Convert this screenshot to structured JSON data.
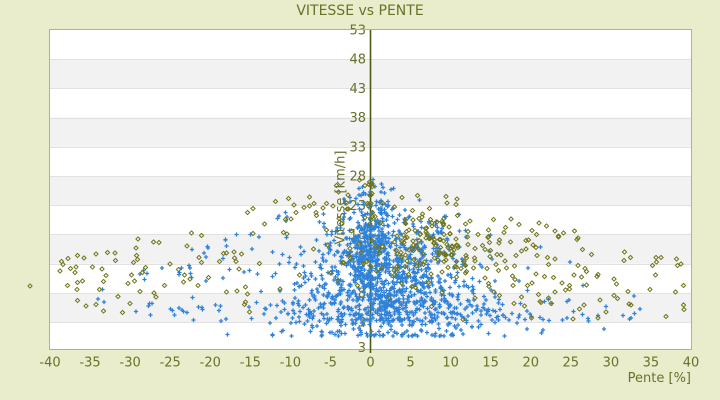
{
  "chart_data": {
    "type": "scatter",
    "title": "VITESSE vs PENTE",
    "xlabel": "Pente [%]",
    "ylabel": "Vitesse [km/h]",
    "xlim": [
      -40,
      40
    ],
    "ylim": [
      -1.6,
      53
    ],
    "x_ticks": [
      -40,
      -35,
      -30,
      -25,
      -20,
      -15,
      -10,
      -5,
      0,
      5,
      10,
      15,
      20,
      25,
      30,
      35,
      40
    ],
    "y_ticks": [
      53,
      48,
      43,
      38,
      33,
      28,
      23,
      18,
      13,
      8,
      3
    ],
    "y_axis_edge_label": "3",
    "grid": "alternating-horizontal-bands",
    "legend": "none",
    "y_axis_position": "center-zeroaxis",
    "colors": {
      "background": "#e9edcb",
      "band_gray": "#f2f2f2",
      "gridline": "#e2e2e2",
      "plot_border": "#adadad",
      "axis_line": "#4b5a12",
      "text": "#68722a",
      "series_blue": "#2f82d9",
      "series_olive": "#6f7419"
    },
    "series": [
      {
        "name": "vitesse-blue-plus",
        "marker": "plus",
        "color": "#2f82d9",
        "seed": 1337,
        "envelope": {
          "y0": 27.8,
          "slope": 0.55,
          "ymin": 0.6,
          "xmin": -38,
          "xmax": 38
        },
        "clusters": [
          {
            "n": 540,
            "x": {
              "dist": "normal",
              "mu": 2.5,
              "sigma": 4.5
            },
            "y": {
              "dist": "normal",
              "mu": 12,
              "sigma": 4.5
            }
          },
          {
            "n": 270,
            "x": {
              "dist": "normal",
              "mu": 0.2,
              "sigma": 1.4
            },
            "y": {
              "dist": "normal",
              "mu": 16,
              "sigma": 5.5
            }
          },
          {
            "n": 450,
            "x": {
              "dist": "normal",
              "mu": 3,
              "sigma": 8
            },
            "y": {
              "dist": "normal",
              "mu": 4.8,
              "sigma": 2.6
            }
          },
          {
            "n": 190,
            "x": {
              "dist": "normal",
              "mu": -3,
              "sigma": 13
            },
            "y": {
              "dist": "normal",
              "mu": 12,
              "sigma": 5.5
            }
          },
          {
            "n": 70,
            "x": {
              "dist": "uniform",
              "min": -28,
              "max": 34
            },
            "y": {
              "dist": "uniform",
              "min": 3.2,
              "max": 6.2
            }
          }
        ],
        "outliers": []
      },
      {
        "name": "secondary-olive-diamond",
        "marker": "diamond",
        "color": "#6f7419",
        "seed": 4242,
        "envelope": {
          "y0": 28.5,
          "slope": 0.38,
          "ymin": 3.4,
          "xmin": -39.5,
          "xmax": 39.5
        },
        "clusters": [
          {
            "n": 135,
            "x": {
              "dist": "normal",
              "mu": 8.5,
              "sigma": 5.5
            },
            "y": {
              "dist": "normal",
              "mu": 16.5,
              "sigma": 2.9
            }
          },
          {
            "n": 115,
            "x": {
              "dist": "uniform",
              "min": -39.5,
              "max": 39.5
            },
            "y": {
              "dist": "normal",
              "mu": 14.5,
              "sigma": 3.9
            }
          },
          {
            "n": 55,
            "x": {
              "dist": "normal",
              "mu": 24,
              "sigma": 8
            },
            "y": {
              "dist": "normal",
              "mu": 8,
              "sigma": 2.6
            }
          },
          {
            "n": 42,
            "x": {
              "dist": "normal",
              "mu": -2.5,
              "sigma": 7.5
            },
            "y": {
              "dist": "normal",
              "mu": 23,
              "sigma": 2.6
            }
          },
          {
            "n": 13,
            "x": {
              "dist": "normal",
              "mu": 0,
              "sigma": 0.15
            },
            "y": {
              "dist": "uniform",
              "min": 19.5,
              "max": 28.2
            }
          },
          {
            "n": 40,
            "x": {
              "dist": "uniform",
              "min": -39.5,
              "max": -14
            },
            "y": {
              "dist": "normal",
              "mu": 10.5,
              "sigma": 3.4
            }
          }
        ],
        "outliers": [
          [
            -42.5,
            9.2
          ]
        ]
      }
    ]
  }
}
